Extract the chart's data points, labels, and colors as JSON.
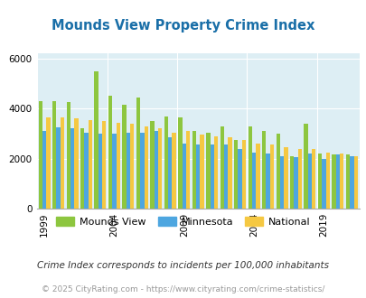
{
  "title": "Mounds View Property Crime Index",
  "years": [
    1999,
    2000,
    2001,
    2002,
    2003,
    2004,
    2005,
    2006,
    2007,
    2008,
    2009,
    2010,
    2011,
    2012,
    2013,
    2014,
    2015,
    2016,
    2017,
    2018,
    2019,
    2020,
    2021
  ],
  "mounds_view": [
    4300,
    4300,
    4250,
    3200,
    5500,
    4500,
    4150,
    4450,
    3500,
    3700,
    3650,
    3100,
    3050,
    3300,
    2750,
    3300,
    3100,
    3000,
    2100,
    3400,
    2200,
    2150,
    2150
  ],
  "minnesota": [
    3100,
    3250,
    3200,
    3050,
    3000,
    3000,
    3050,
    3050,
    3100,
    2850,
    2600,
    2550,
    2550,
    2550,
    2400,
    2250,
    2200,
    2100,
    2050,
    2200,
    2000,
    2150,
    2100
  ],
  "national": [
    3650,
    3650,
    3600,
    3550,
    3500,
    3450,
    3400,
    3300,
    3200,
    3050,
    3100,
    2950,
    2900,
    2850,
    2750,
    2600,
    2550,
    2450,
    2400,
    2400,
    2250,
    2200,
    2100
  ],
  "bar_colors": {
    "mounds_view": "#8dc63f",
    "minnesota": "#4da6e0",
    "national": "#f5c842"
  },
  "bg_color": "#ddeef4",
  "ylim": [
    0,
    6200
  ],
  "yticks": [
    0,
    2000,
    4000,
    6000
  ],
  "xlabel_ticks": [
    1999,
    2004,
    2009,
    2014,
    2019
  ],
  "legend_labels": [
    "Mounds View",
    "Minnesota",
    "National"
  ],
  "footnote1": "Crime Index corresponds to incidents per 100,000 inhabitants",
  "footnote2": "© 2025 CityRating.com - https://www.cityrating.com/crime-statistics/",
  "title_color": "#1a6fa8",
  "footnote1_color": "#333333",
  "footnote2_color": "#999999"
}
